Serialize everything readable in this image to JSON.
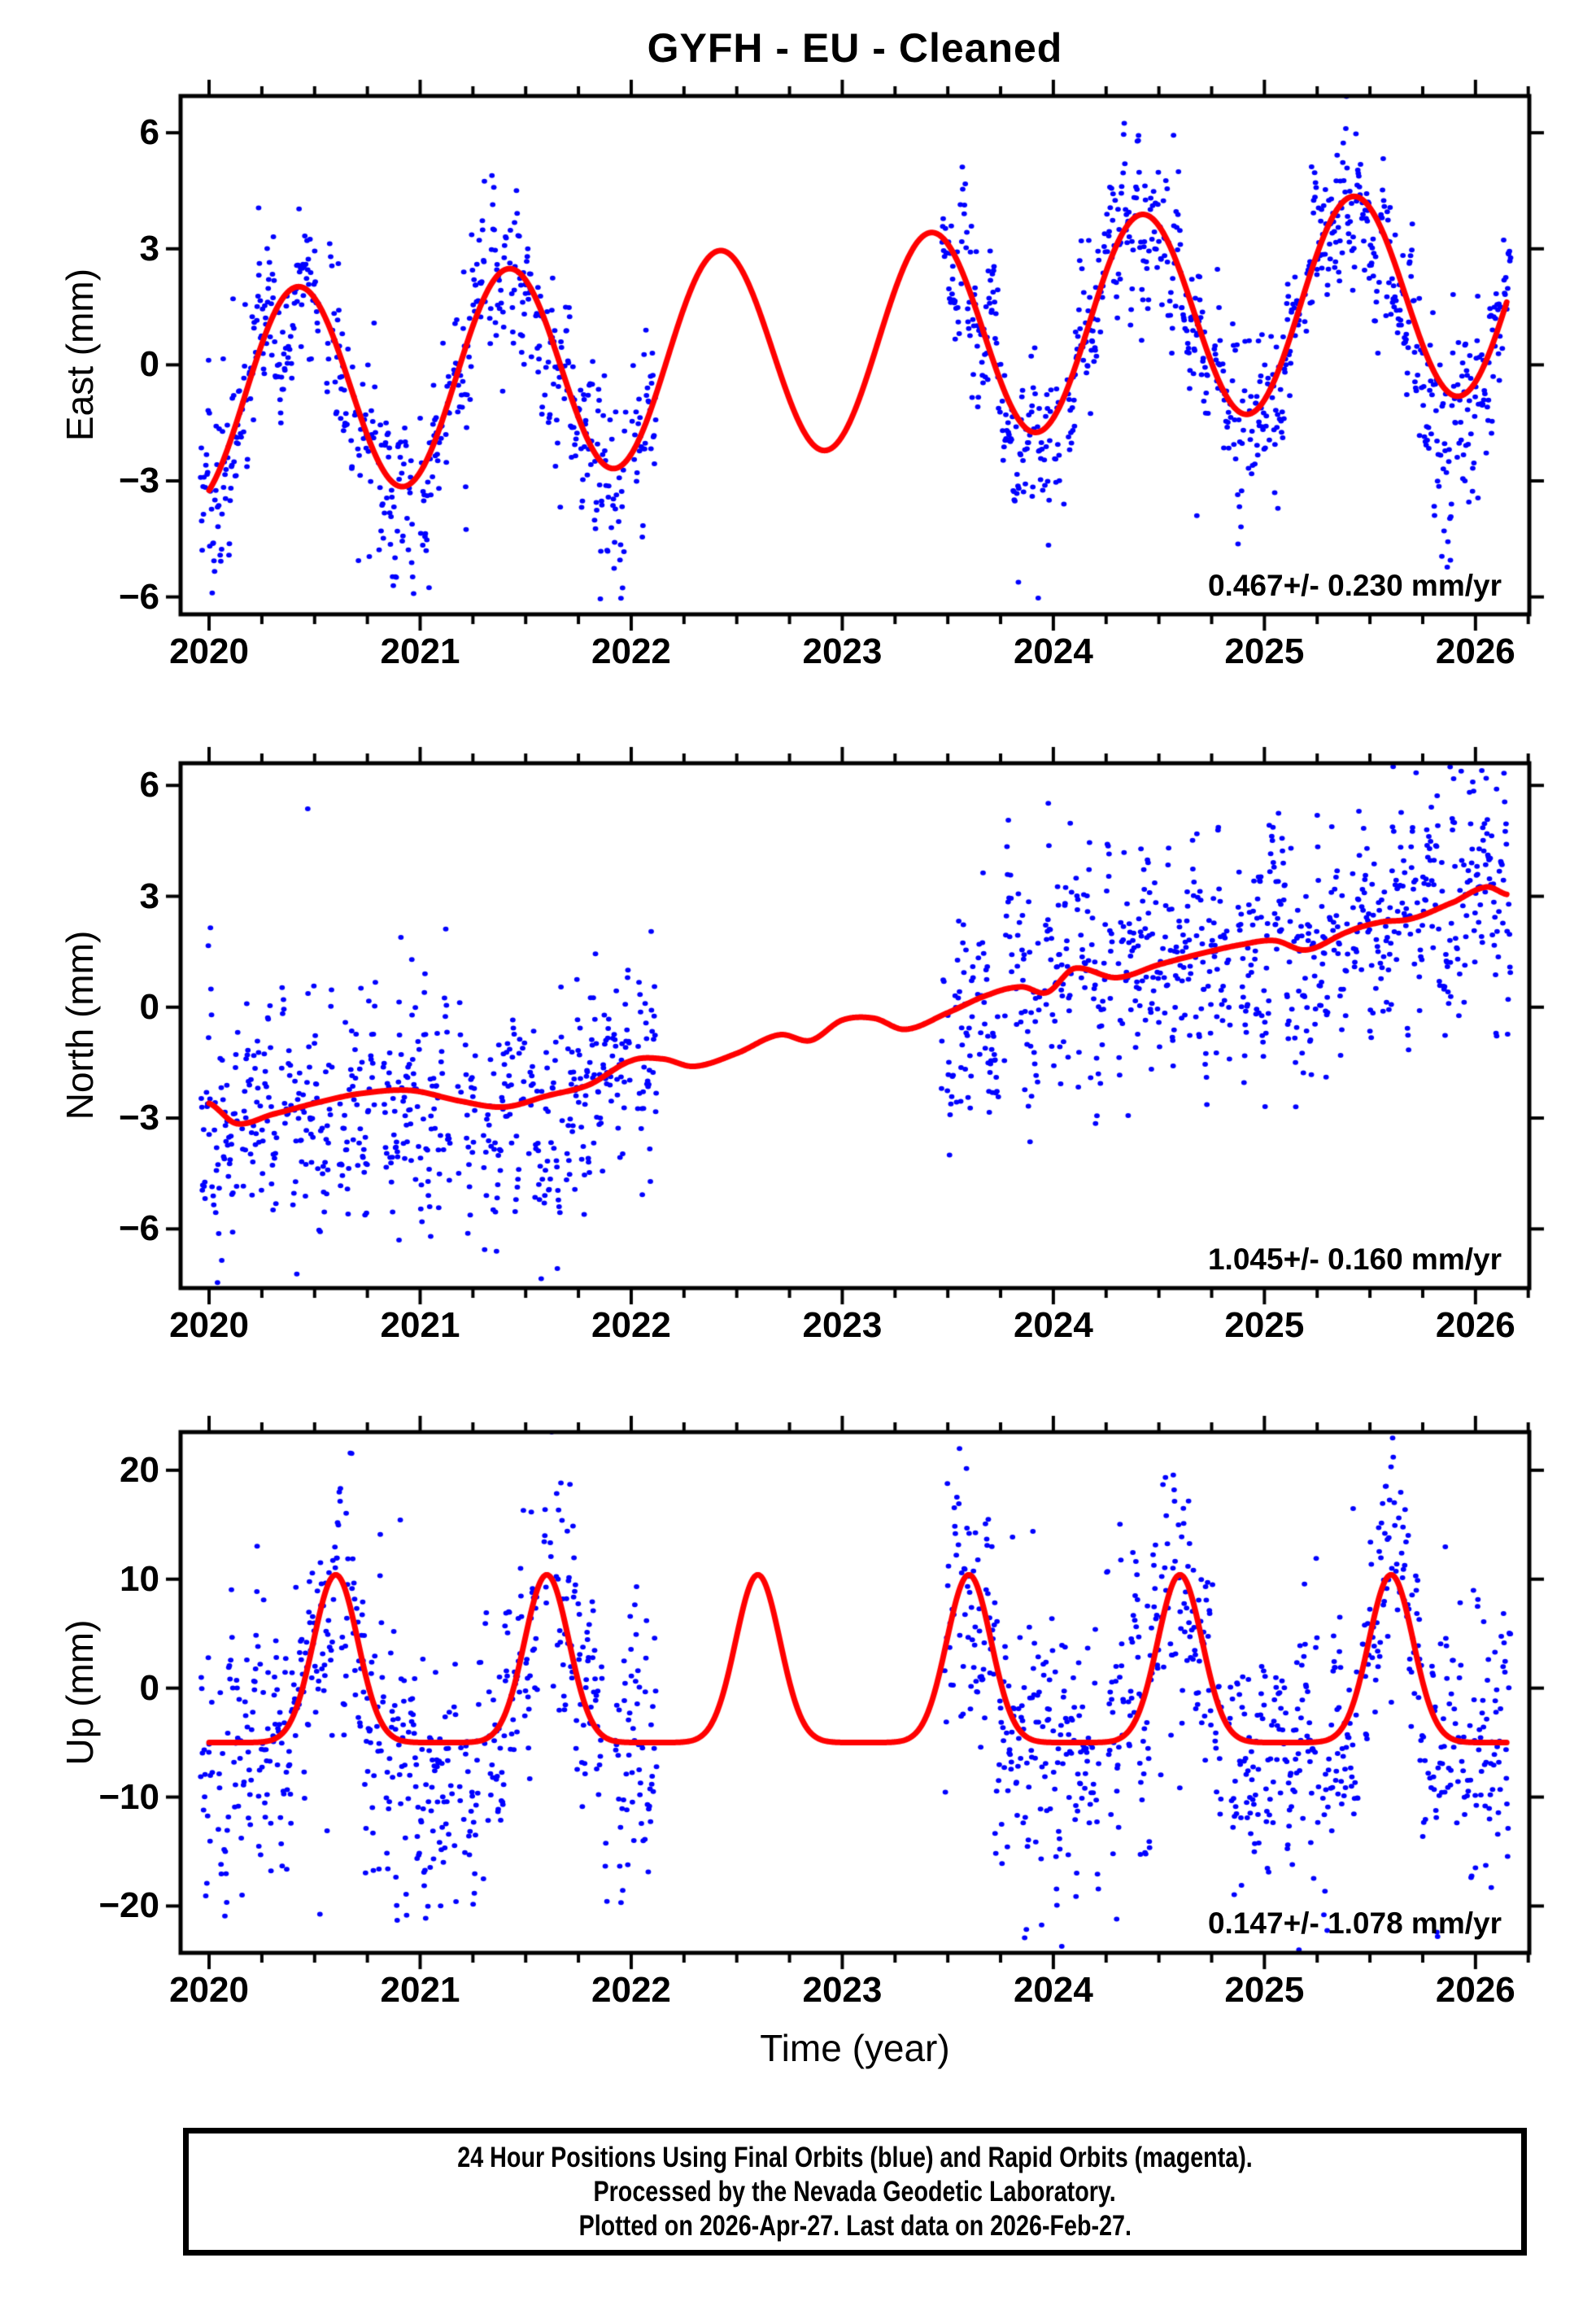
{
  "title": "GYFH  - EU - Cleaned",
  "chart_data": {
    "type": "scatter",
    "title": "GYFH  - EU - Cleaned",
    "xlabel": "Time (year)",
    "xlim": [
      2019.865,
      2026.255
    ],
    "x_ticks": [
      2020,
      2021,
      2022,
      2023,
      2024,
      2025,
      2026
    ],
    "x_minor_interval": 0.25,
    "grid": "off",
    "point_color": "#0000ff",
    "rapid_point_color": "#ff00ff",
    "model_color": "#ff0000",
    "frame_color": "#000000",
    "data_segments": [
      [
        2019.96,
        2022.12
      ],
      [
        2023.47,
        2026.17
      ]
    ],
    "model_range": [
      2020.0,
      2026.15
    ],
    "scatter_seed": 7,
    "samples_per_year": 365,
    "dropout": 0.12,
    "panels": [
      {
        "id": "east",
        "ylabel": "East (mm)",
        "annotation": "0.467+/- 0.230 mm/yr",
        "rate_mm_per_yr": 0.467,
        "rate_sigma": 0.23,
        "ylim": [
          -6.45,
          6.95
        ],
        "yticks": [
          -6,
          -3,
          0,
          3,
          6
        ],
        "noise_sigma": 0.82,
        "model": {
          "kind": "trend_annual",
          "ref_t": 2020.7,
          "offset": -0.55,
          "trend": 0.467,
          "annual_amp": 2.7,
          "peak_phase": 0.42
        },
        "outliers": [
          [
            2020.33,
            1.35
          ],
          [
            2023.9,
            -3.4
          ],
          [
            2024.68,
            -3.9
          ],
          [
            2025.95,
            -3.0
          ],
          [
            2024.05,
            -3.6
          ]
        ]
      },
      {
        "id": "north",
        "ylabel": "North (mm)",
        "annotation": "1.045+/- 0.160 mm/yr",
        "rate_mm_per_yr": 1.045,
        "rate_sigma": 0.16,
        "ylim": [
          -7.6,
          6.6
        ],
        "yticks": [
          -6,
          -3,
          0,
          3,
          6
        ],
        "noise_sigma": 1.2,
        "model": {
          "kind": "spline",
          "points": [
            [
              2020.0,
              -2.6
            ],
            [
              2020.13,
              -3.15
            ],
            [
              2020.3,
              -2.9
            ],
            [
              2020.5,
              -2.6
            ],
            [
              2020.7,
              -2.35
            ],
            [
              2020.95,
              -2.25
            ],
            [
              2021.2,
              -2.55
            ],
            [
              2021.4,
              -2.7
            ],
            [
              2021.6,
              -2.4
            ],
            [
              2021.8,
              -2.1
            ],
            [
              2022.0,
              -1.45
            ],
            [
              2022.15,
              -1.4
            ],
            [
              2022.3,
              -1.6
            ],
            [
              2022.5,
              -1.25
            ],
            [
              2022.7,
              -0.75
            ],
            [
              2022.85,
              -0.9
            ],
            [
              2023.0,
              -0.35
            ],
            [
              2023.15,
              -0.3
            ],
            [
              2023.3,
              -0.6
            ],
            [
              2023.5,
              -0.15
            ],
            [
              2023.7,
              0.35
            ],
            [
              2023.85,
              0.55
            ],
            [
              2023.97,
              0.4
            ],
            [
              2024.1,
              1.05
            ],
            [
              2024.3,
              0.8
            ],
            [
              2024.5,
              1.15
            ],
            [
              2024.7,
              1.45
            ],
            [
              2024.9,
              1.7
            ],
            [
              2025.05,
              1.8
            ],
            [
              2025.2,
              1.55
            ],
            [
              2025.4,
              2.05
            ],
            [
              2025.55,
              2.3
            ],
            [
              2025.7,
              2.4
            ],
            [
              2025.9,
              2.85
            ],
            [
              2026.05,
              3.25
            ],
            [
              2026.15,
              3.05
            ]
          ]
        },
        "outliers": [
          [
            2020.04,
            -7.45
          ],
          [
            2020.06,
            -6.85
          ],
          [
            2020.9,
            -6.3
          ],
          [
            2021.05,
            -6.2
          ],
          [
            2024.2,
            -3.15
          ],
          [
            2025.88,
            6.5
          ],
          [
            2026.03,
            6.4
          ],
          [
            2026.1,
            5.9
          ]
        ]
      },
      {
        "id": "up",
        "ylabel": "Up (mm)",
        "annotation": "0.147+/- 1.078 mm/yr",
        "rate_mm_per_yr": 0.147,
        "rate_sigma": 1.078,
        "ylim": [
          -24.3,
          23.5
        ],
        "yticks": [
          -20,
          -10,
          0,
          10,
          20
        ],
        "noise_sigma": 4.8,
        "model": {
          "kind": "baseline_bumps",
          "base": -5.0,
          "trend": 0.0,
          "bump_amp": 15.4,
          "bump_center_frac": 0.6,
          "bump_sigma": 0.105,
          "bump_years": [
            2020,
            2021,
            2022,
            2023,
            2024,
            2025
          ]
        },
        "outliers": [
          [
            2020.55,
            24.3
          ],
          [
            2021.17,
            -19.6
          ],
          [
            2021.3,
            -17.5
          ],
          [
            2023.77,
            23.6
          ],
          [
            2024.04,
            -23.7
          ],
          [
            2024.3,
            -21.2
          ],
          [
            2025.6,
            20.3
          ],
          [
            2026.0,
            -16.5
          ]
        ]
      }
    ]
  },
  "footer": {
    "lines": [
      "24 Hour Positions Using Final Orbits (blue) and Rapid Orbits (magenta).",
      "Processed by the Nevada Geodetic Laboratory.",
      "Plotted on 2026-Apr-27. Last data on 2026-Feb-27."
    ]
  }
}
